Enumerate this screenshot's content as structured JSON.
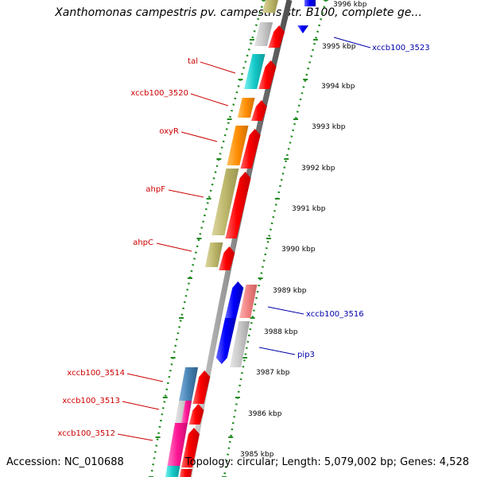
{
  "title": "Xanthomonas campestris pv. campestris str. B100, complete ge...",
  "footer": {
    "accession": "Accession: NC_010688",
    "summary": "Topology: circular; Length: 5,079,002 bp; Genes: 4,528"
  },
  "kbp_labels": [
    "3996 kbp",
    "3995 kbp",
    "3994 kbp",
    "3993 kbp",
    "3992 kbp",
    "3991 kbp",
    "3990 kbp",
    "3989 kbp",
    "3988 kbp",
    "3987 kbp",
    "3986 kbp",
    "3985 kbp"
  ],
  "left_gene_labels": [
    "tal",
    "xccb100_3520",
    "oxyR",
    "ahpF",
    "ahpC",
    "xccb100_3514",
    "xccb100_3513",
    "xccb100_3512"
  ],
  "right_gene_labels": [
    "xccb100_3523",
    "xccb100_3516",
    "pip3"
  ],
  "colors": {
    "forward_cds": "#ff0000",
    "reverse_cds": "#0000ff",
    "left_label": "#cc0000",
    "right_label": "#0000aa",
    "tick": "#228b22",
    "backbone": "#808080"
  }
}
